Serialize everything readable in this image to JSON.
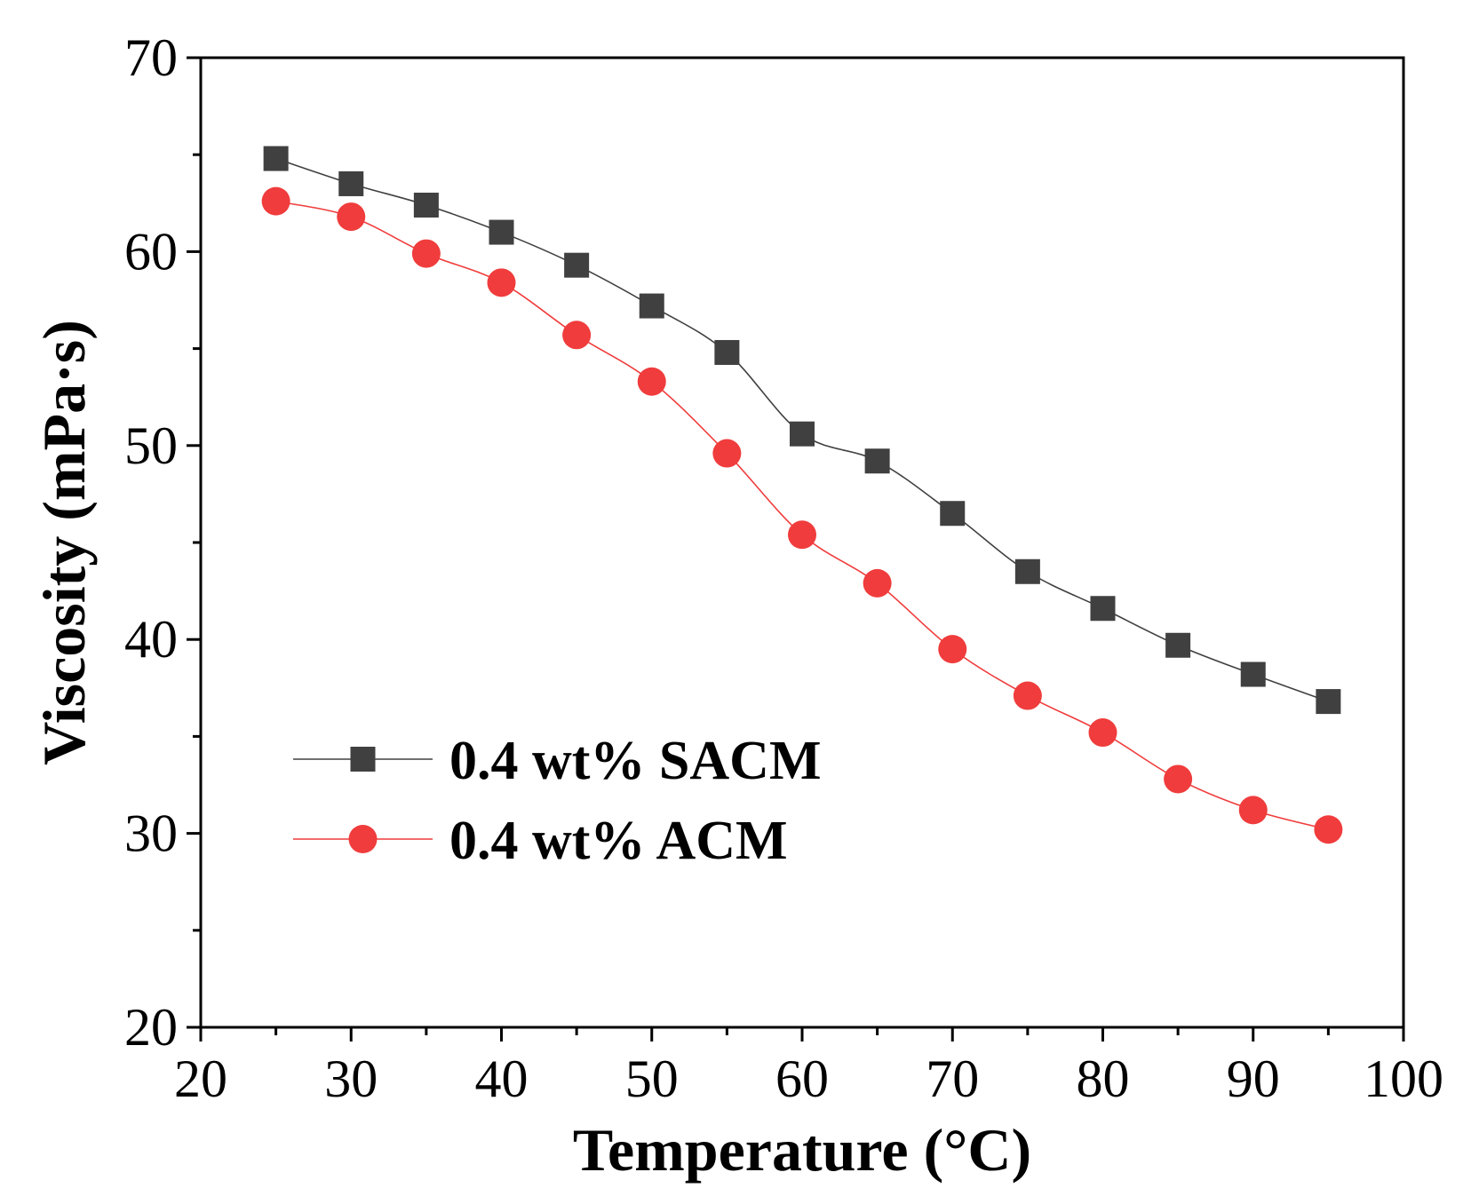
{
  "chart_data": {
    "type": "line",
    "xlabel": "Temperature (°C)",
    "ylabel": "Viscosity (mPa·s)",
    "xlim": [
      20,
      100
    ],
    "ylim": [
      20,
      70
    ],
    "xticks": [
      20,
      30,
      40,
      50,
      60,
      70,
      80,
      90,
      100
    ],
    "yticks": [
      20,
      30,
      40,
      50,
      60,
      70
    ],
    "grid": false,
    "legend_position": "lower-left",
    "x": [
      25,
      30,
      35,
      40,
      45,
      50,
      55,
      60,
      65,
      70,
      75,
      80,
      85,
      90,
      95
    ],
    "series": [
      {
        "name": "0.4 wt% SACM",
        "marker": "square",
        "color": "#404040",
        "line_color": "#404040",
        "values": [
          64.8,
          63.5,
          62.4,
          61.0,
          59.3,
          57.2,
          54.8,
          50.6,
          49.2,
          46.5,
          43.5,
          41.6,
          39.7,
          38.2,
          36.8
        ]
      },
      {
        "name": "0.4 wt% ACM",
        "marker": "circle",
        "color": "#f03c3c",
        "line_color": "#f03c3c",
        "values": [
          62.6,
          61.8,
          59.9,
          58.4,
          55.7,
          53.3,
          49.6,
          45.4,
          42.9,
          39.5,
          37.1,
          35.2,
          32.8,
          31.2,
          30.2
        ]
      }
    ]
  }
}
